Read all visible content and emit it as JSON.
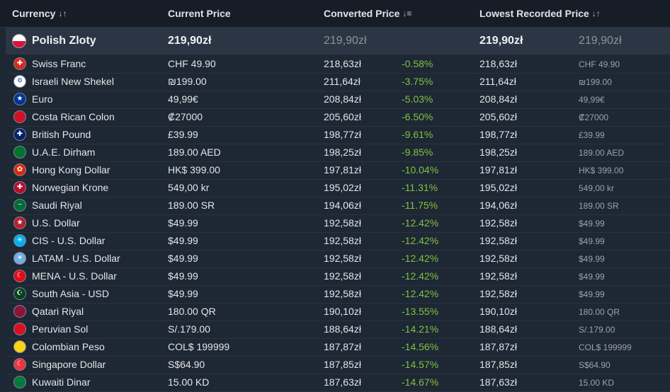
{
  "header": {
    "currency": "Currency",
    "current_price": "Current Price",
    "converted_price": "Converted Price",
    "lowest_recorded": "Lowest Recorded Price"
  },
  "featured": {
    "name": "Polish Zloty",
    "current": "219,90zł",
    "converted": "219,90zł",
    "lowest": "219,90zł",
    "lowest_original": "219,90zł",
    "flag_colors": [
      "#ffffff",
      "#dc143c"
    ]
  },
  "rows": [
    {
      "name": "Swiss Franc",
      "current": "CHF 49.90",
      "converted": "218,63zł",
      "diff": "-0.58%",
      "lowest": "218,63zł",
      "lowest_original": "CHF 49.90",
      "flag_bg": "#d52b1e",
      "flag_glyph": "✚"
    },
    {
      "name": "Israeli New Shekel",
      "current": "₪199.00",
      "converted": "211,64zł",
      "diff": "-3.75%",
      "lowest": "211,64zł",
      "lowest_original": "₪199.00",
      "flag_bg": "#ffffff",
      "flag_glyph": "✡"
    },
    {
      "name": "Euro",
      "current": "49,99€",
      "converted": "208,84zł",
      "diff": "-5.03%",
      "lowest": "208,84zł",
      "lowest_original": "49,99€",
      "flag_bg": "#003399",
      "flag_glyph": "★"
    },
    {
      "name": "Costa Rican Colon",
      "current": "₡27000",
      "converted": "205,60zł",
      "diff": "-6.50%",
      "lowest": "205,60zł",
      "lowest_original": "₡27000",
      "flag_bg": "#ce1126",
      "flag_glyph": ""
    },
    {
      "name": "British Pound",
      "current": "£39.99",
      "converted": "198,77zł",
      "diff": "-9.61%",
      "lowest": "198,77zł",
      "lowest_original": "£39.99",
      "flag_bg": "#012169",
      "flag_glyph": "✚"
    },
    {
      "name": "U.A.E. Dirham",
      "current": "189.00 AED",
      "converted": "198,25zł",
      "diff": "-9.85%",
      "lowest": "198,25zł",
      "lowest_original": "189.00 AED",
      "flag_bg": "#00732f",
      "flag_glyph": ""
    },
    {
      "name": "Hong Kong Dollar",
      "current": "HK$ 399.00",
      "converted": "197,81zł",
      "diff": "-10.04%",
      "lowest": "197,81zł",
      "lowest_original": "HK$ 399.00",
      "flag_bg": "#de2910",
      "flag_glyph": "✿"
    },
    {
      "name": "Norwegian Krone",
      "current": "549,00 kr",
      "converted": "195,02zł",
      "diff": "-11.31%",
      "lowest": "195,02zł",
      "lowest_original": "549,00 kr",
      "flag_bg": "#ba0c2f",
      "flag_glyph": "✚"
    },
    {
      "name": "Saudi Riyal",
      "current": "189.00 SR",
      "converted": "194,06zł",
      "diff": "-11.75%",
      "lowest": "194,06zł",
      "lowest_original": "189.00 SR",
      "flag_bg": "#006c35",
      "flag_glyph": "~"
    },
    {
      "name": "U.S. Dollar",
      "current": "$49.99",
      "converted": "192,58zł",
      "diff": "-12.42%",
      "lowest": "192,58zł",
      "lowest_original": "$49.99",
      "flag_bg": "#b22234",
      "flag_glyph": "★"
    },
    {
      "name": "CIS - U.S. Dollar",
      "current": "$49.99",
      "converted": "192,58zł",
      "diff": "-12.42%",
      "lowest": "192,58zł",
      "lowest_original": "$49.99",
      "flag_bg": "#00aff0",
      "flag_glyph": "☀"
    },
    {
      "name": "LATAM - U.S. Dollar",
      "current": "$49.99",
      "converted": "192,58zł",
      "diff": "-12.42%",
      "lowest": "192,58zł",
      "lowest_original": "$49.99",
      "flag_bg": "#74acdf",
      "flag_glyph": "☀"
    },
    {
      "name": "MENA - U.S. Dollar",
      "current": "$49.99",
      "converted": "192,58zł",
      "diff": "-12.42%",
      "lowest": "192,58zł",
      "lowest_original": "$49.99",
      "flag_bg": "#e30a17",
      "flag_glyph": "☾"
    },
    {
      "name": "South Asia - USD",
      "current": "$49.99",
      "converted": "192,58zł",
      "diff": "-12.42%",
      "lowest": "192,58zł",
      "lowest_original": "$49.99",
      "flag_bg": "#01411c",
      "flag_glyph": "☪"
    },
    {
      "name": "Qatari Riyal",
      "current": "180.00 QR",
      "converted": "190,10zł",
      "diff": "-13.55%",
      "lowest": "190,10zł",
      "lowest_original": "180.00 QR",
      "flag_bg": "#8a1538",
      "flag_glyph": ""
    },
    {
      "name": "Peruvian Sol",
      "current": "S/.179.00",
      "converted": "188,64zł",
      "diff": "-14.21%",
      "lowest": "188,64zł",
      "lowest_original": "S/.179.00",
      "flag_bg": "#d91023",
      "flag_glyph": ""
    },
    {
      "name": "Colombian Peso",
      "current": "COL$ 199999",
      "converted": "187,87zł",
      "diff": "-14.56%",
      "lowest": "187,87zł",
      "lowest_original": "COL$ 199999",
      "flag_bg": "#fcd116",
      "flag_glyph": ""
    },
    {
      "name": "Singapore Dollar",
      "current": "S$64.90",
      "converted": "187,85zł",
      "diff": "-14.57%",
      "lowest": "187,85zł",
      "lowest_original": "S$64.90",
      "flag_bg": "#ef3340",
      "flag_glyph": "☾"
    },
    {
      "name": "Kuwaiti Dinar",
      "current": "15.00 KD",
      "converted": "187,63zł",
      "diff": "-14.67%",
      "lowest": "187,63zł",
      "lowest_original": "15.00 KD",
      "flag_bg": "#007a3d",
      "flag_glyph": ""
    }
  ],
  "colors": {
    "background": "#1e2734",
    "header_bg": "#161d27",
    "featured_bg": "#2b3543",
    "discount": "#7fc242",
    "muted": "#9aa2ac"
  }
}
